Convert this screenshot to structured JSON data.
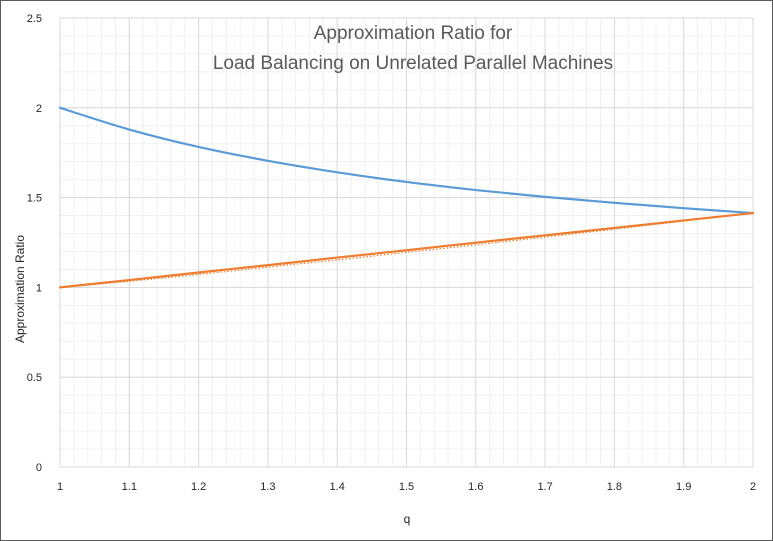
{
  "chart_data": {
    "type": "line",
    "title": [
      "Approximation Ratio for",
      "Load Balancing on Unrelated Parallel Machines"
    ],
    "xlabel": "q",
    "ylabel": "Approximation Ratio",
    "xlim": [
      1,
      2
    ],
    "ylim": [
      0,
      2.5
    ],
    "x_ticks": [
      "1",
      "1.1",
      "1.2",
      "1.3",
      "1.4",
      "1.5",
      "1.6",
      "1.7",
      "1.8",
      "1.9",
      "2"
    ],
    "y_ticks": [
      "0",
      "0.5",
      "1",
      "1.5",
      "2",
      "2.5"
    ],
    "grid": true,
    "legend": "none",
    "x": [
      1,
      1.1,
      1.2,
      1.3,
      1.4,
      1.5,
      1.6,
      1.7,
      1.8,
      1.9,
      2
    ],
    "series": [
      {
        "color": "#5b9bd5",
        "style": "solid",
        "values": [
          2.0,
          1.879,
          1.782,
          1.705,
          1.641,
          1.587,
          1.542,
          1.504,
          1.471,
          1.441,
          1.414
        ]
      },
      {
        "color": "#ed7d31",
        "style": "solid",
        "values": [
          1.0,
          1.041,
          1.083,
          1.124,
          1.166,
          1.207,
          1.249,
          1.29,
          1.331,
          1.373,
          1.414
        ]
      },
      {
        "color": "#ed7d31",
        "style": "dotted",
        "values": [
          1.0,
          1.034,
          1.072,
          1.113,
          1.153,
          1.195,
          1.237,
          1.28,
          1.324,
          1.369,
          1.414
        ]
      }
    ]
  }
}
